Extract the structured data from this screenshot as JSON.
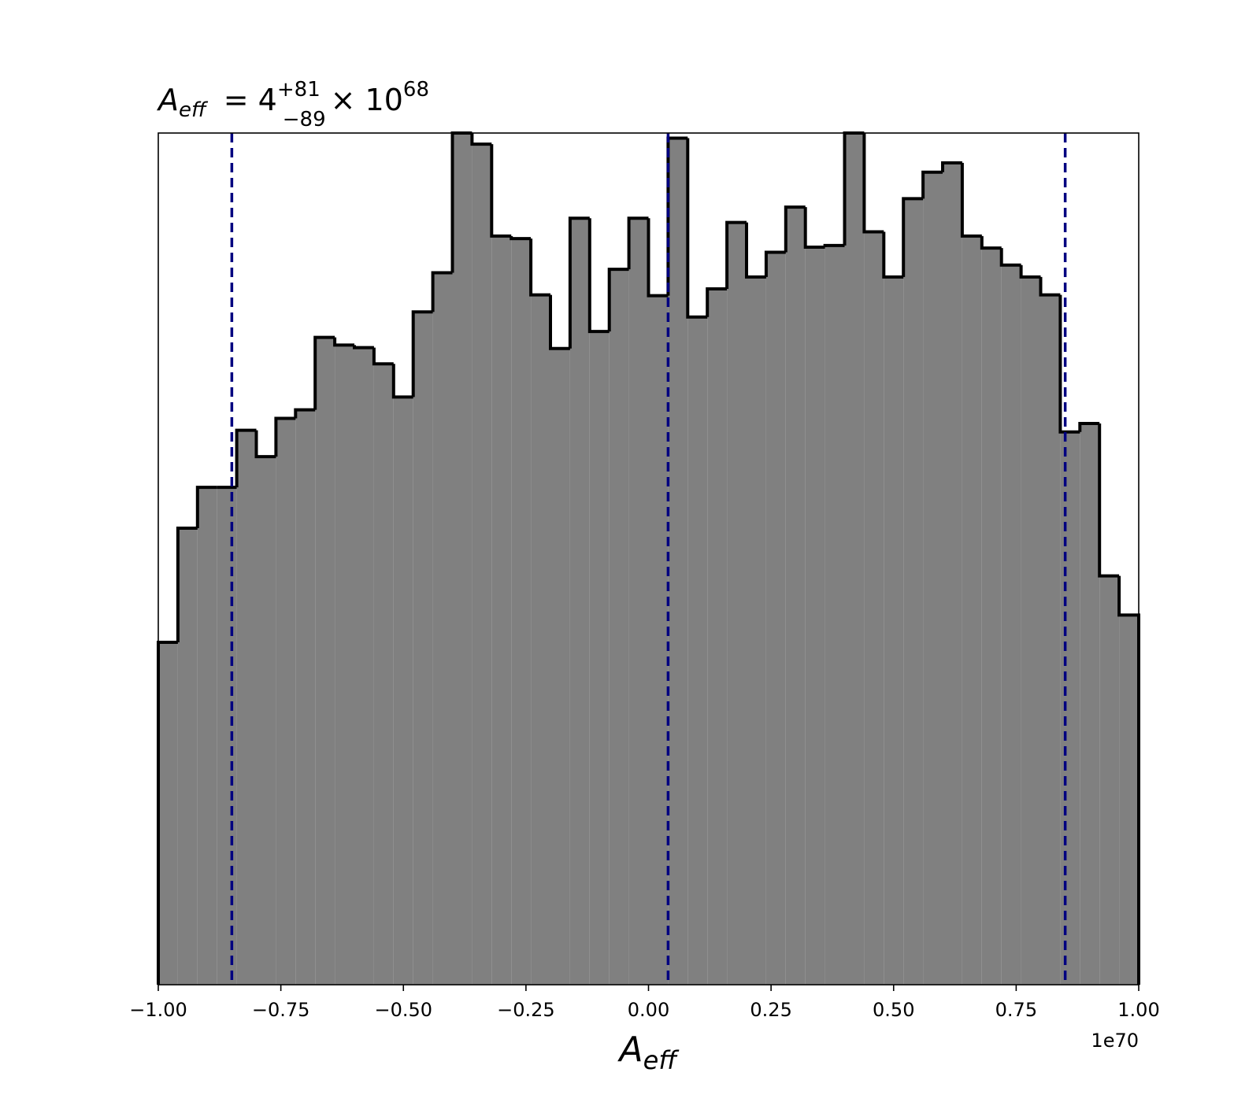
{
  "chart_data": {
    "type": "histogram",
    "title": {
      "symbol": "A",
      "symbol_sub": "eff",
      "value": "= 4",
      "upper": "+81",
      "lower": "−89",
      "times": "× 10",
      "exponent": "68"
    },
    "x_label": {
      "symbol": "A",
      "symbol_sub": "eff"
    },
    "x_offset_label": "1e70",
    "bins": [
      -1.0,
      -0.96,
      -0.92,
      -0.88,
      -0.84,
      -0.8,
      -0.76,
      -0.72,
      -0.68,
      -0.64,
      -0.6,
      -0.56,
      -0.52,
      -0.48,
      -0.44,
      -0.4,
      -0.36,
      -0.32,
      -0.28,
      -0.24,
      -0.2,
      -0.16,
      -0.12,
      -0.08,
      -0.04,
      0.0,
      0.04,
      0.08,
      0.12,
      0.16,
      0.2,
      0.24,
      0.28,
      0.32,
      0.36,
      0.4,
      0.44,
      0.48,
      0.52,
      0.56,
      0.6,
      0.64,
      0.68,
      0.72,
      0.76,
      0.8,
      0.84,
      0.88,
      0.92,
      0.96,
      1.0
    ],
    "values": [
      40.2,
      53.6,
      58.4,
      58.4,
      65.1,
      62.0,
      66.5,
      67.5,
      76.0,
      75.1,
      74.8,
      72.9,
      69.0,
      79.0,
      83.6,
      100,
      98.7,
      87.9,
      87.6,
      81.0,
      74.7,
      90.0,
      76.7,
      84.0,
      90.0,
      80.9,
      99.4,
      78.4,
      81.7,
      89.5,
      83.1,
      86.0,
      91.3,
      86.6,
      86.8,
      100,
      88.4,
      83.1,
      92.3,
      95.4,
      96.5,
      87.9,
      86.5,
      84.5,
      83.1,
      81.0,
      64.9,
      65.9,
      48.0,
      43.4
    ],
    "color": "#808080",
    "edge_color": "#000000",
    "vlines": [
      -0.85,
      0.04,
      0.85
    ],
    "vline_color": "#000080",
    "xlim": [
      -1.0,
      1.0
    ],
    "ylim": [
      0,
      100
    ],
    "xticks": [
      {
        "value": -1.0,
        "label": "−1.00"
      },
      {
        "value": -0.75,
        "label": "−0.75"
      },
      {
        "value": -0.5,
        "label": "−0.50"
      },
      {
        "value": -0.25,
        "label": "−0.25"
      },
      {
        "value": 0.0,
        "label": "0.00"
      },
      {
        "value": 0.25,
        "label": "0.25"
      },
      {
        "value": 0.5,
        "label": "0.50"
      },
      {
        "value": 0.75,
        "label": "0.75"
      },
      {
        "value": 1.0,
        "label": "1.00"
      }
    ]
  }
}
